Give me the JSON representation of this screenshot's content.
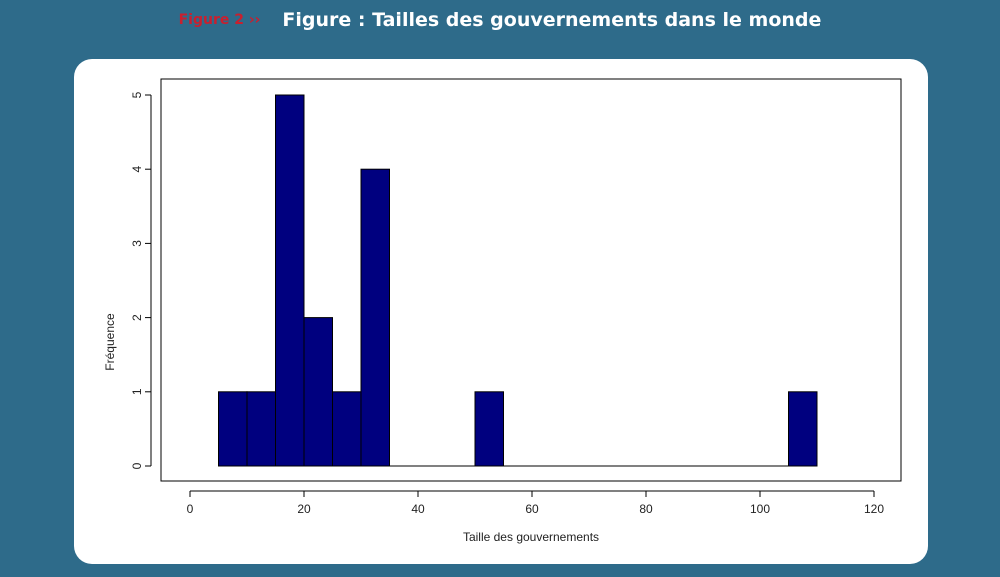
{
  "header": {
    "tag": "Figure 2 ››",
    "title": "Figure : Tailles des gouvernements dans le monde"
  },
  "colors": {
    "background": "#2e6b8a",
    "bar": "#00007f",
    "tag": "#c8202f"
  },
  "chart_data": {
    "type": "bar",
    "subtype": "histogram",
    "xlabel": "Taille des gouvernements",
    "ylabel": "Fréquence",
    "xlim": [
      0,
      120
    ],
    "ylim": [
      0,
      5
    ],
    "xticks": [
      0,
      20,
      40,
      60,
      80,
      100,
      120
    ],
    "yticks": [
      0,
      1,
      2,
      3,
      4,
      5
    ],
    "bin_width": 5,
    "bins": [
      {
        "start": 5,
        "end": 10,
        "count": 1
      },
      {
        "start": 10,
        "end": 15,
        "count": 1
      },
      {
        "start": 15,
        "end": 20,
        "count": 5
      },
      {
        "start": 20,
        "end": 25,
        "count": 2
      },
      {
        "start": 25,
        "end": 30,
        "count": 1
      },
      {
        "start": 30,
        "end": 35,
        "count": 4
      },
      {
        "start": 35,
        "end": 40,
        "count": 0
      },
      {
        "start": 40,
        "end": 45,
        "count": 0
      },
      {
        "start": 45,
        "end": 50,
        "count": 0
      },
      {
        "start": 50,
        "end": 55,
        "count": 1
      },
      {
        "start": 55,
        "end": 60,
        "count": 0
      },
      {
        "start": 60,
        "end": 65,
        "count": 0
      },
      {
        "start": 65,
        "end": 70,
        "count": 0
      },
      {
        "start": 70,
        "end": 75,
        "count": 0
      },
      {
        "start": 75,
        "end": 80,
        "count": 0
      },
      {
        "start": 80,
        "end": 85,
        "count": 0
      },
      {
        "start": 85,
        "end": 90,
        "count": 0
      },
      {
        "start": 90,
        "end": 95,
        "count": 0
      },
      {
        "start": 95,
        "end": 100,
        "count": 0
      },
      {
        "start": 100,
        "end": 105,
        "count": 0
      },
      {
        "start": 105,
        "end": 110,
        "count": 1
      }
    ]
  }
}
